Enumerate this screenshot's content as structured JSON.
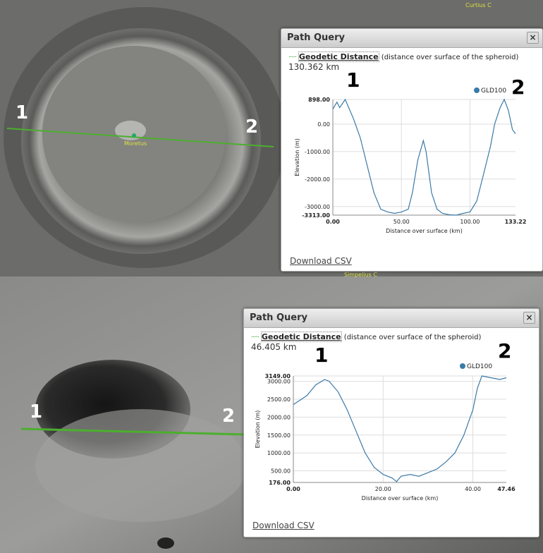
{
  "maps": [
    {
      "labels": [
        "1",
        "2"
      ],
      "places": [
        "Moretus",
        "Curtius C"
      ]
    },
    {
      "labels": [
        "1",
        "2"
      ],
      "places": [
        "Simpelius C"
      ]
    }
  ],
  "dialogs": [
    {
      "title": "Path Query",
      "close": "×",
      "link": "Geodetic Distance",
      "description": "(distance over surface of the spheroid)",
      "distance": "130.362 km",
      "download": "Download CSV"
    },
    {
      "title": "Path Query",
      "close": "×",
      "link": "Geodetic Distance",
      "description": "(distance over surface of the spheroid)",
      "distance": "46.405 km",
      "download": "Download CSV"
    }
  ],
  "chart_data": [
    {
      "type": "line",
      "xlabel": "Distance over surface (km)",
      "ylabel": "Elevation (m)",
      "annotations": [
        "1",
        "2"
      ],
      "x": [
        0,
        3,
        5,
        9,
        15,
        20,
        25,
        30,
        35,
        40,
        45,
        50,
        55,
        58,
        62,
        66,
        68,
        72,
        76,
        80,
        85,
        90,
        95,
        100,
        105,
        110,
        115,
        118,
        122,
        125,
        128,
        131,
        133.22
      ],
      "series": [
        {
          "name": "GLD100",
          "color": "#3b7aa8",
          "values": [
            550,
            800,
            600,
            898,
            200,
            -500,
            -1500,
            -2500,
            -3100,
            -3200,
            -3250,
            -3200,
            -3100,
            -2500,
            -1300,
            -600,
            -1000,
            -2500,
            -3100,
            -3250,
            -3300,
            -3313,
            -3250,
            -3200,
            -2800,
            -1800,
            -800,
            0,
            600,
            898,
            500,
            -200,
            -350
          ]
        }
      ],
      "xlim": [
        0,
        133.22
      ],
      "xticks": [
        {
          "value": 0,
          "label": "0.00"
        },
        {
          "value": 50,
          "label": "50.00"
        },
        {
          "value": 100,
          "label": "100.00"
        },
        {
          "value": 133.22,
          "label": "133.22"
        }
      ],
      "ylim": [
        -3313,
        898
      ],
      "yticks": [
        {
          "value": 898,
          "label": "898.00"
        },
        {
          "value": 0,
          "label": "0.00"
        },
        {
          "value": -1000,
          "label": "-1000.00"
        },
        {
          "value": -2000,
          "label": "-2000.00"
        },
        {
          "value": -3000,
          "label": "-3000.00"
        },
        {
          "value": -3313,
          "label": "-3313.00"
        }
      ],
      "grid": true
    },
    {
      "type": "line",
      "xlabel": "Distance over surface (km)",
      "ylabel": "Elevation (m)",
      "annotations": [
        "1",
        "2"
      ],
      "x": [
        0,
        3,
        5,
        7,
        8,
        10,
        12,
        14,
        16,
        18,
        20,
        22,
        23,
        24,
        26,
        28,
        30,
        32,
        34,
        36,
        38,
        40,
        41,
        42,
        44,
        46,
        47.46
      ],
      "series": [
        {
          "name": "GLD100",
          "color": "#3b7aa8",
          "values": [
            2350,
            2600,
            2900,
            3050,
            3000,
            2700,
            2200,
            1600,
            1000,
            600,
            400,
            300,
            200,
            350,
            400,
            350,
            450,
            550,
            750,
            1000,
            1500,
            2200,
            2800,
            3149,
            3100,
            3050,
            3100
          ]
        }
      ],
      "xlim": [
        0,
        47.46
      ],
      "xticks": [
        {
          "value": 0,
          "label": "0.00"
        },
        {
          "value": 20,
          "label": "20.00"
        },
        {
          "value": 40,
          "label": "40.00"
        },
        {
          "value": 47.46,
          "label": "47.46"
        }
      ],
      "ylim": [
        176,
        3149
      ],
      "yticks": [
        {
          "value": 3149,
          "label": "3149.00"
        },
        {
          "value": 3000,
          "label": "3000.00"
        },
        {
          "value": 2500,
          "label": "2500.00"
        },
        {
          "value": 2000,
          "label": "2000.00"
        },
        {
          "value": 1500,
          "label": "1500.00"
        },
        {
          "value": 1000,
          "label": "1000.00"
        },
        {
          "value": 500,
          "label": "500.00"
        },
        {
          "value": 176,
          "label": "176.00"
        }
      ],
      "grid": true
    }
  ]
}
